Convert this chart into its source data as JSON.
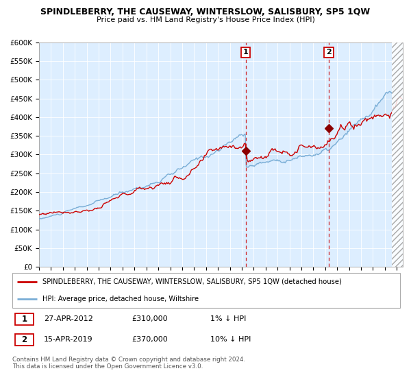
{
  "title": "SPINDLEBERRY, THE CAUSEWAY, WINTERSLOW, SALISBURY, SP5 1QW",
  "subtitle": "Price paid vs. HM Land Registry's House Price Index (HPI)",
  "legend_line1": "SPINDLEBERRY, THE CAUSEWAY, WINTERSLOW, SALISBURY, SP5 1QW (detached house)",
  "legend_line2": "HPI: Average price, detached house, Wiltshire",
  "annotation1_date": "27-APR-2012",
  "annotation1_price": "£310,000",
  "annotation1_hpi": "1% ↓ HPI",
  "annotation2_date": "15-APR-2019",
  "annotation2_price": "£370,000",
  "annotation2_hpi": "10% ↓ HPI",
  "sale1_year": 2012.32,
  "sale1_value": 310000,
  "sale2_year": 2019.29,
  "sale2_value": 370000,
  "ylim": [
    0,
    600000
  ],
  "xlim_start": 1995.0,
  "xlim_end": 2025.5,
  "background_chart": "#ddeeff",
  "line_red": "#cc0000",
  "line_blue": "#7aaed6",
  "marker_color": "#8b0000",
  "footer": "Contains HM Land Registry data © Crown copyright and database right 2024.\nThis data is licensed under the Open Government Licence v3.0.",
  "yticks": [
    0,
    50000,
    100000,
    150000,
    200000,
    250000,
    300000,
    350000,
    400000,
    450000,
    500000,
    550000,
    600000
  ],
  "ytick_labels": [
    "£0",
    "£50K",
    "£100K",
    "£150K",
    "£200K",
    "£250K",
    "£300K",
    "£350K",
    "£400K",
    "£450K",
    "£500K",
    "£550K",
    "£600K"
  ]
}
